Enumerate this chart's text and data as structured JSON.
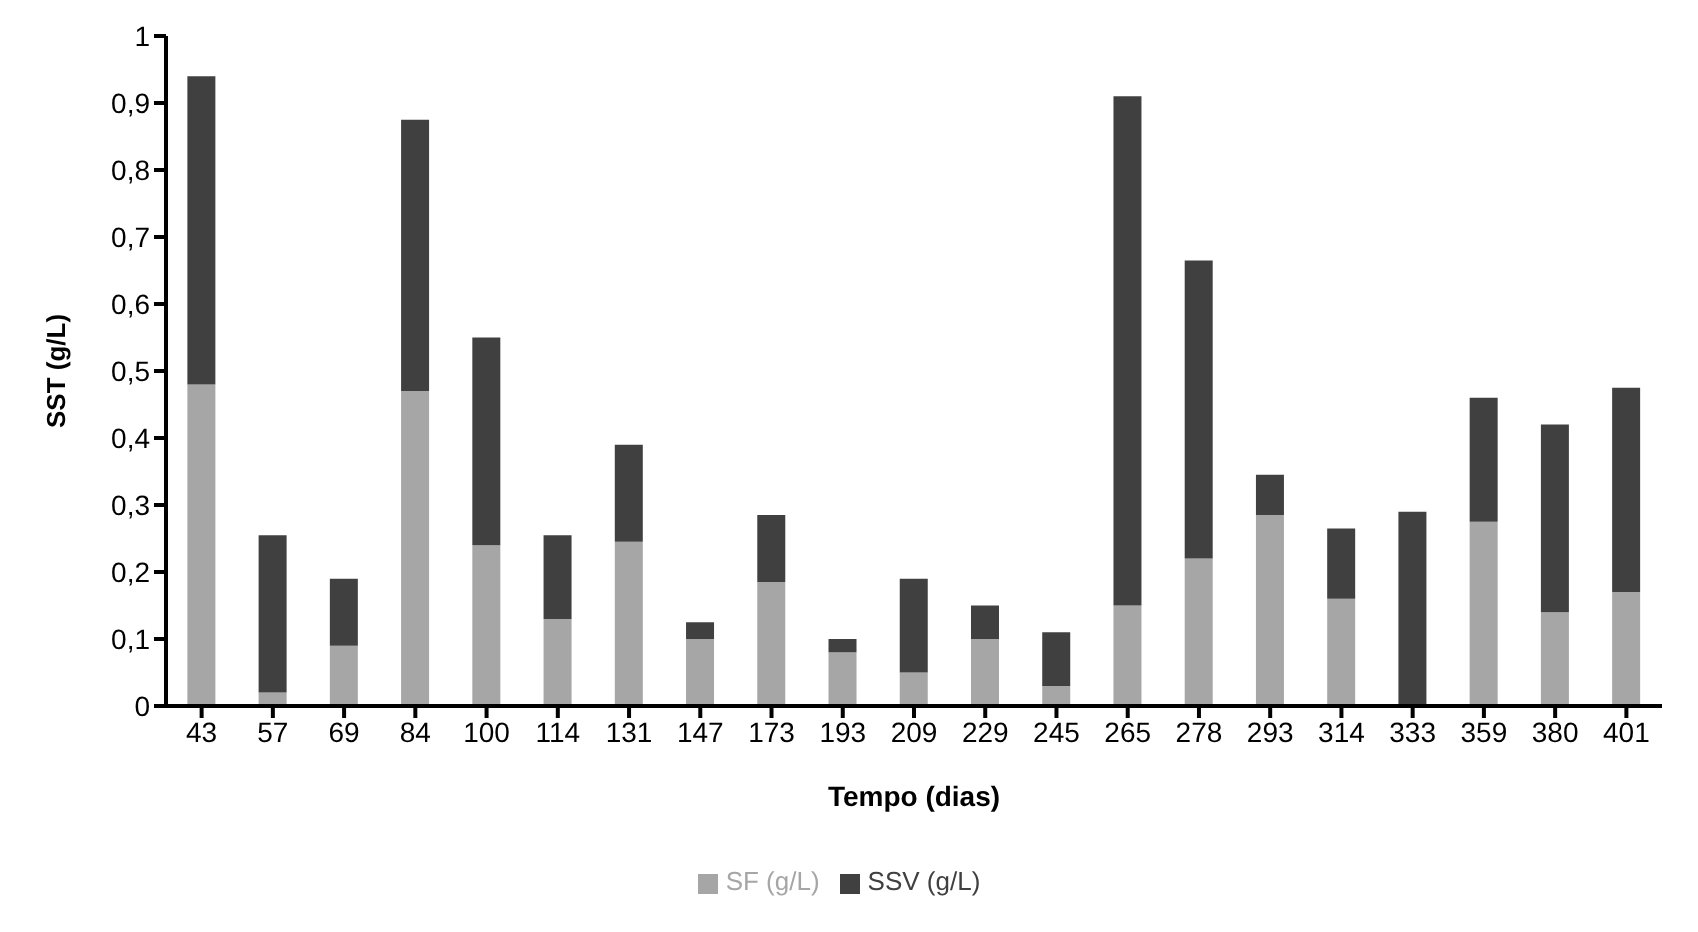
{
  "chart_data": {
    "type": "bar",
    "stacked": true,
    "xlabel": "Tempo (dias)",
    "ylabel": "SST (g/L)",
    "categories": [
      "43",
      "57",
      "69",
      "84",
      "100",
      "114",
      "131",
      "147",
      "173",
      "193",
      "209",
      "229",
      "245",
      "265",
      "278",
      "293",
      "314",
      "333",
      "359",
      "380",
      "401"
    ],
    "series": [
      {
        "name": "SF (g/L)",
        "color": "#a6a6a6",
        "values": [
          0.48,
          0.02,
          0.09,
          0.47,
          0.24,
          0.13,
          0.245,
          0.1,
          0.185,
          0.08,
          0.05,
          0.1,
          0.03,
          0.15,
          0.22,
          0.285,
          0.16,
          0,
          0.275,
          0.14,
          0.17
        ]
      },
      {
        "name": "SSV (g/L)",
        "color": "#404040",
        "values": [
          0.46,
          0.235,
          0.1,
          0.405,
          0.31,
          0.125,
          0.145,
          0.025,
          0.1,
          0.02,
          0.14,
          0.05,
          0.08,
          0.76,
          0.445,
          0.06,
          0.105,
          0.29,
          0.185,
          0.28,
          0.305
        ]
      }
    ],
    "ylim": [
      0,
      1
    ],
    "yticks": [
      {
        "value": 0,
        "label": "0"
      },
      {
        "value": 0.1,
        "label": "0,1"
      },
      {
        "value": 0.2,
        "label": "0,2"
      },
      {
        "value": 0.3,
        "label": "0,3"
      },
      {
        "value": 0.4,
        "label": "0,4"
      },
      {
        "value": 0.5,
        "label": "0,5"
      },
      {
        "value": 0.6,
        "label": "0,6"
      },
      {
        "value": 0.7,
        "label": "0,7"
      },
      {
        "value": 0.8,
        "label": "0,8"
      },
      {
        "value": 0.9,
        "label": "0,9"
      },
      {
        "value": 1,
        "label": "1"
      }
    ],
    "grid": false,
    "legend": "bottom"
  }
}
